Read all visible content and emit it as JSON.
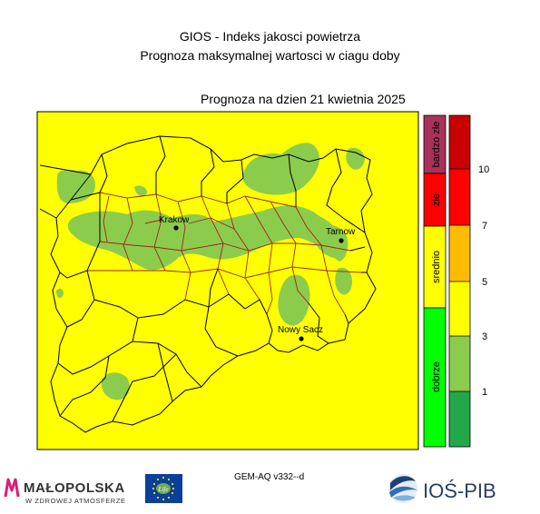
{
  "header": {
    "title_line1": "GIOS - Indeks jakosci powietrza",
    "title_line2": "Prognoza maksymalnej wartosci w ciagu doby",
    "forecast_date": "Prognoza na dzien  21 kwietnia 2025"
  },
  "map": {
    "background_color": "#ffff00",
    "good_zone_color": "#8ccc4c",
    "cities": [
      {
        "name": "Krakow"
      },
      {
        "name": "Tarnow"
      },
      {
        "name": "Nowy Sacz"
      }
    ]
  },
  "category_legend": [
    {
      "label": "bardzo złe",
      "color": "#a8325a"
    },
    {
      "label": "złe",
      "color": "#ff0000"
    },
    {
      "label": "srednio",
      "color": "#ffff00"
    },
    {
      "label": "dobrze",
      "color": "#00ff00"
    }
  ],
  "colorbar": {
    "colors": [
      "#ca0000",
      "#ff0000",
      "#ffbb00",
      "#ffff00",
      "#8ccc4c",
      "#22a84a"
    ],
    "tick_labels": [
      "10",
      "7",
      "5",
      "3",
      "1"
    ]
  },
  "footer": {
    "model_version": "GEM-AQ v332--d",
    "logo_malopolska": "MAŁOPOLSKA",
    "logo_malopolska_sub": "W ZDROWEJ ATMOSFERZE",
    "logo_eu_text": "Life",
    "logo_ios": "IOŚ-PIB"
  }
}
